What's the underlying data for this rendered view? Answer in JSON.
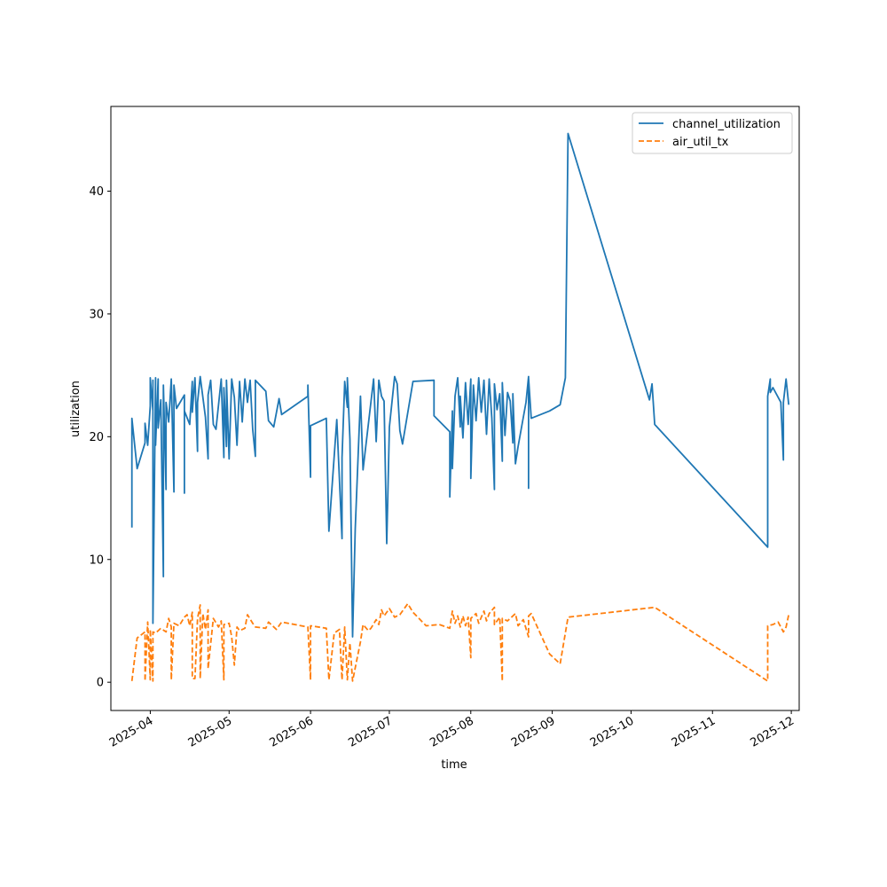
{
  "chart_data": {
    "type": "line",
    "title": "",
    "xlabel": "time",
    "ylabel": "utilization",
    "x_range": [
      "2025-03-17",
      "2025-12-04"
    ],
    "ylim": [
      -2.3,
      46.9
    ],
    "grid": false,
    "legend_position": "top-right",
    "x_ticks": [
      {
        "date": "2025-04-01",
        "label": "2025-04"
      },
      {
        "date": "2025-05-01",
        "label": "2025-05"
      },
      {
        "date": "2025-06-01",
        "label": "2025-06"
      },
      {
        "date": "2025-07-01",
        "label": "2025-07"
      },
      {
        "date": "2025-08-01",
        "label": "2025-08"
      },
      {
        "date": "2025-09-01",
        "label": "2025-09"
      },
      {
        "date": "2025-10-01",
        "label": "2025-10"
      },
      {
        "date": "2025-11-01",
        "label": "2025-11"
      },
      {
        "date": "2025-12-01",
        "label": "2025-12"
      }
    ],
    "y_ticks": [
      0,
      10,
      20,
      30,
      40
    ],
    "series": [
      {
        "name": "channel_utilization",
        "color": "#1f77b4",
        "style": "solid",
        "points": [
          [
            "2025-03-25",
            12.6
          ],
          [
            "2025-03-25",
            21.5
          ],
          [
            "2025-03-27",
            17.4
          ],
          [
            "2025-03-30",
            19.5
          ],
          [
            "2025-03-30",
            21.1
          ],
          [
            "2025-03-31",
            19.3
          ],
          [
            "2025-04-01",
            22.5
          ],
          [
            "2025-04-01",
            24.8
          ],
          [
            "2025-04-02",
            22.1
          ],
          [
            "2025-04-02",
            24.6
          ],
          [
            "2025-04-02",
            4.8
          ],
          [
            "2025-04-03",
            24.8
          ],
          [
            "2025-04-03",
            19.3
          ],
          [
            "2025-04-04",
            24.7
          ],
          [
            "2025-04-04",
            20.7
          ],
          [
            "2025-04-05",
            23.0
          ],
          [
            "2025-04-06",
            8.6
          ],
          [
            "2025-04-06",
            24.2
          ],
          [
            "2025-04-07",
            15.7
          ],
          [
            "2025-04-07",
            22.8
          ],
          [
            "2025-04-08",
            21.2
          ],
          [
            "2025-04-09",
            24.7
          ],
          [
            "2025-04-10",
            15.5
          ],
          [
            "2025-04-10",
            24.2
          ],
          [
            "2025-04-11",
            22.3
          ],
          [
            "2025-04-14",
            23.4
          ],
          [
            "2025-04-14",
            15.4
          ],
          [
            "2025-04-14",
            22.1
          ],
          [
            "2025-04-16",
            21.0
          ],
          [
            "2025-04-17",
            24.5
          ],
          [
            "2025-04-17",
            22.0
          ],
          [
            "2025-04-18",
            24.8
          ],
          [
            "2025-04-19",
            18.8
          ],
          [
            "2025-04-19",
            22.8
          ],
          [
            "2025-04-20",
            24.9
          ],
          [
            "2025-04-22",
            21.6
          ],
          [
            "2025-04-23",
            18.2
          ],
          [
            "2025-04-23",
            23.4
          ],
          [
            "2025-04-24",
            24.6
          ],
          [
            "2025-04-25",
            21.0
          ],
          [
            "2025-04-26",
            20.6
          ],
          [
            "2025-04-28",
            24.7
          ],
          [
            "2025-04-29",
            18.3
          ],
          [
            "2025-04-29",
            24.0
          ],
          [
            "2025-04-30",
            19.2
          ],
          [
            "2025-04-30",
            24.6
          ],
          [
            "2025-05-01",
            18.2
          ],
          [
            "2025-05-02",
            24.7
          ],
          [
            "2025-05-03",
            23.2
          ],
          [
            "2025-05-04",
            19.3
          ],
          [
            "2025-05-05",
            24.5
          ],
          [
            "2025-05-06",
            21.2
          ],
          [
            "2025-05-07",
            24.7
          ],
          [
            "2025-05-08",
            22.8
          ],
          [
            "2025-05-09",
            24.6
          ],
          [
            "2025-05-10",
            20.6
          ],
          [
            "2025-05-11",
            18.4
          ],
          [
            "2025-05-11",
            24.6
          ],
          [
            "2025-05-15",
            23.7
          ],
          [
            "2025-05-16",
            21.3
          ],
          [
            "2025-05-18",
            20.8
          ],
          [
            "2025-05-20",
            23.1
          ],
          [
            "2025-05-21",
            21.8
          ],
          [
            "2025-05-31",
            23.3
          ],
          [
            "2025-05-31",
            24.2
          ],
          [
            "2025-06-01",
            16.7
          ],
          [
            "2025-06-01",
            20.9
          ],
          [
            "2025-06-07",
            21.5
          ],
          [
            "2025-06-08",
            12.3
          ],
          [
            "2025-06-11",
            21.4
          ],
          [
            "2025-06-13",
            11.7
          ],
          [
            "2025-06-13",
            18.3
          ],
          [
            "2025-06-14",
            24.4
          ],
          [
            "2025-06-14",
            24.5
          ],
          [
            "2025-06-15",
            22.4
          ],
          [
            "2025-06-15",
            24.8
          ],
          [
            "2025-06-16",
            19.8
          ],
          [
            "2025-06-17",
            3.7
          ],
          [
            "2025-06-18",
            12.5
          ],
          [
            "2025-06-20",
            23.3
          ],
          [
            "2025-06-21",
            17.3
          ],
          [
            "2025-06-25",
            24.7
          ],
          [
            "2025-06-26",
            19.6
          ],
          [
            "2025-06-27",
            24.6
          ],
          [
            "2025-06-28",
            23.3
          ],
          [
            "2025-06-29",
            22.9
          ],
          [
            "2025-06-30",
            11.3
          ],
          [
            "2025-07-01",
            20.8
          ],
          [
            "2025-07-03",
            24.9
          ],
          [
            "2025-07-04",
            24.3
          ],
          [
            "2025-07-05",
            20.5
          ],
          [
            "2025-07-06",
            19.4
          ],
          [
            "2025-07-10",
            24.5
          ],
          [
            "2025-07-18",
            24.6
          ],
          [
            "2025-07-18",
            21.7
          ],
          [
            "2025-07-24",
            20.4
          ],
          [
            "2025-07-24",
            15.1
          ],
          [
            "2025-07-25",
            22.1
          ],
          [
            "2025-07-25",
            17.4
          ],
          [
            "2025-07-26",
            23.3
          ],
          [
            "2025-07-27",
            24.8
          ],
          [
            "2025-07-28",
            20.8
          ],
          [
            "2025-07-28",
            23.3
          ],
          [
            "2025-07-29",
            19.9
          ],
          [
            "2025-07-30",
            24.4
          ],
          [
            "2025-07-31",
            21.0
          ],
          [
            "2025-08-01",
            24.7
          ],
          [
            "2025-08-01",
            16.6
          ],
          [
            "2025-08-02",
            24.2
          ],
          [
            "2025-08-03",
            21.3
          ],
          [
            "2025-08-04",
            24.8
          ],
          [
            "2025-08-05",
            22.0
          ],
          [
            "2025-08-06",
            24.6
          ],
          [
            "2025-08-07",
            20.2
          ],
          [
            "2025-08-08",
            24.7
          ],
          [
            "2025-08-09",
            21.5
          ],
          [
            "2025-08-10",
            15.7
          ],
          [
            "2025-08-10",
            24.3
          ],
          [
            "2025-08-11",
            22.2
          ],
          [
            "2025-08-12",
            23.5
          ],
          [
            "2025-08-13",
            18.0
          ],
          [
            "2025-08-13",
            24.4
          ],
          [
            "2025-08-14",
            20.1
          ],
          [
            "2025-08-15",
            23.6
          ],
          [
            "2025-08-16",
            22.9
          ],
          [
            "2025-08-17",
            19.5
          ],
          [
            "2025-08-17",
            23.5
          ],
          [
            "2025-08-18",
            17.8
          ],
          [
            "2025-08-19",
            19.2
          ],
          [
            "2025-08-22",
            22.8
          ],
          [
            "2025-08-23",
            24.9
          ],
          [
            "2025-08-23",
            15.8
          ],
          [
            "2025-08-23",
            24.8
          ],
          [
            "2025-08-24",
            21.5
          ],
          [
            "2025-08-31",
            22.1
          ],
          [
            "2025-09-04",
            22.6
          ],
          [
            "2025-09-06",
            24.8
          ],
          [
            "2025-09-07",
            44.7
          ],
          [
            "2025-10-08",
            23.0
          ],
          [
            "2025-10-09",
            24.3
          ],
          [
            "2025-10-10",
            21.0
          ],
          [
            "2025-11-22",
            11.0
          ],
          [
            "2025-11-22",
            23.3
          ],
          [
            "2025-11-23",
            24.7
          ],
          [
            "2025-11-23",
            23.6
          ],
          [
            "2025-11-24",
            24.0
          ],
          [
            "2025-11-27",
            22.8
          ],
          [
            "2025-11-28",
            18.1
          ],
          [
            "2025-11-28",
            22.8
          ],
          [
            "2025-11-29",
            24.7
          ],
          [
            "2025-11-30",
            22.6
          ]
        ]
      },
      {
        "name": "air_util_tx",
        "color": "#ff7f0e",
        "style": "dashed",
        "points": [
          [
            "2025-03-25",
            0.1
          ],
          [
            "2025-03-27",
            3.6
          ],
          [
            "2025-03-30",
            4.1
          ],
          [
            "2025-03-30",
            0.1
          ],
          [
            "2025-03-31",
            4.9
          ],
          [
            "2025-04-01",
            0.2
          ],
          [
            "2025-04-01",
            4.3
          ],
          [
            "2025-04-02",
            0.1
          ],
          [
            "2025-04-02",
            4.1
          ],
          [
            "2025-04-03",
            4.0
          ],
          [
            "2025-04-05",
            4.4
          ],
          [
            "2025-04-07",
            4.1
          ],
          [
            "2025-04-08",
            5.2
          ],
          [
            "2025-04-09",
            4.5
          ],
          [
            "2025-04-09",
            0.2
          ],
          [
            "2025-04-10",
            4.8
          ],
          [
            "2025-04-12",
            4.6
          ],
          [
            "2025-04-14",
            5.3
          ],
          [
            "2025-04-15",
            5.5
          ],
          [
            "2025-04-16",
            4.6
          ],
          [
            "2025-04-17",
            5.7
          ],
          [
            "2025-04-17",
            0.3
          ],
          [
            "2025-04-18",
            0.3
          ],
          [
            "2025-04-19",
            5.2
          ],
          [
            "2025-04-20",
            6.3
          ],
          [
            "2025-04-20",
            0.3
          ],
          [
            "2025-04-21",
            5.6
          ],
          [
            "2025-04-22",
            4.3
          ],
          [
            "2025-04-23",
            5.9
          ],
          [
            "2025-04-23",
            1.1
          ],
          [
            "2025-04-25",
            5.2
          ],
          [
            "2025-04-27",
            4.5
          ],
          [
            "2025-04-28",
            5.0
          ],
          [
            "2025-04-29",
            0.2
          ],
          [
            "2025-04-29",
            4.7
          ],
          [
            "2025-05-01",
            4.8
          ],
          [
            "2025-05-02",
            3.7
          ],
          [
            "2025-05-03",
            1.4
          ],
          [
            "2025-05-04",
            4.5
          ],
          [
            "2025-05-05",
            4.2
          ],
          [
            "2025-05-07",
            4.4
          ],
          [
            "2025-05-08",
            5.5
          ],
          [
            "2025-05-10",
            4.8
          ],
          [
            "2025-05-11",
            4.5
          ],
          [
            "2025-05-15",
            4.4
          ],
          [
            "2025-05-16",
            4.9
          ],
          [
            "2025-05-19",
            4.3
          ],
          [
            "2025-05-21",
            4.9
          ],
          [
            "2025-05-31",
            4.5
          ],
          [
            "2025-06-01",
            0.2
          ],
          [
            "2025-06-01",
            4.6
          ],
          [
            "2025-06-07",
            4.4
          ],
          [
            "2025-06-08",
            0.2
          ],
          [
            "2025-06-10",
            4.0
          ],
          [
            "2025-06-12",
            4.3
          ],
          [
            "2025-06-13",
            0.2
          ],
          [
            "2025-06-14",
            4.5
          ],
          [
            "2025-06-15",
            0.2
          ],
          [
            "2025-06-16",
            3.2
          ],
          [
            "2025-06-17",
            0.1
          ],
          [
            "2025-06-20",
            3.3
          ],
          [
            "2025-06-21",
            4.7
          ],
          [
            "2025-06-23",
            4.2
          ],
          [
            "2025-06-24",
            4.4
          ],
          [
            "2025-06-26",
            5.1
          ],
          [
            "2025-06-27",
            4.7
          ],
          [
            "2025-06-28",
            5.9
          ],
          [
            "2025-06-29",
            5.4
          ],
          [
            "2025-07-01",
            6.0
          ],
          [
            "2025-07-03",
            5.3
          ],
          [
            "2025-07-05",
            5.5
          ],
          [
            "2025-07-08",
            6.4
          ],
          [
            "2025-07-10",
            5.7
          ],
          [
            "2025-07-15",
            4.6
          ],
          [
            "2025-07-20",
            4.7
          ],
          [
            "2025-07-24",
            4.4
          ],
          [
            "2025-07-25",
            5.8
          ],
          [
            "2025-07-26",
            4.8
          ],
          [
            "2025-07-27",
            5.4
          ],
          [
            "2025-07-28",
            4.5
          ],
          [
            "2025-07-29",
            5.4
          ],
          [
            "2025-07-30",
            4.6
          ],
          [
            "2025-07-31",
            5.3
          ],
          [
            "2025-08-01",
            2.0
          ],
          [
            "2025-08-01",
            5.2
          ],
          [
            "2025-08-03",
            5.6
          ],
          [
            "2025-08-04",
            4.8
          ],
          [
            "2025-08-06",
            5.8
          ],
          [
            "2025-08-07",
            5.0
          ],
          [
            "2025-08-08",
            5.6
          ],
          [
            "2025-08-10",
            6.1
          ],
          [
            "2025-08-10",
            4.7
          ],
          [
            "2025-08-12",
            5.3
          ],
          [
            "2025-08-13",
            0.1
          ],
          [
            "2025-08-13",
            5.2
          ],
          [
            "2025-08-15",
            5.0
          ],
          [
            "2025-08-18",
            5.6
          ],
          [
            "2025-08-19",
            4.6
          ],
          [
            "2025-08-21",
            5.1
          ],
          [
            "2025-08-23",
            3.7
          ],
          [
            "2025-08-23",
            5.4
          ],
          [
            "2025-08-24",
            5.6
          ],
          [
            "2025-08-31",
            2.3
          ],
          [
            "2025-09-04",
            1.5
          ],
          [
            "2025-09-07",
            5.3
          ],
          [
            "2025-10-10",
            6.1
          ],
          [
            "2025-11-22",
            0.1
          ],
          [
            "2025-11-22",
            4.6
          ],
          [
            "2025-11-24",
            4.7
          ],
          [
            "2025-11-26",
            4.9
          ],
          [
            "2025-11-28",
            4.1
          ],
          [
            "2025-11-29",
            4.5
          ],
          [
            "2025-11-30",
            5.5
          ]
        ]
      }
    ]
  }
}
